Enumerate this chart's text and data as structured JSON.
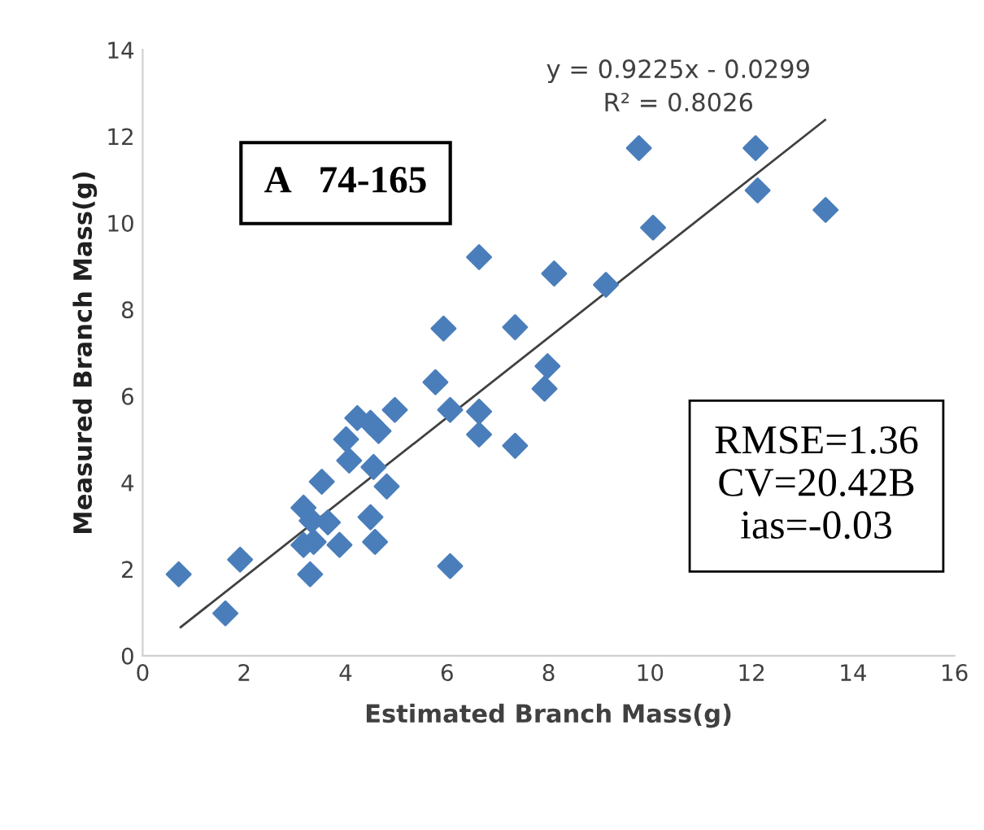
{
  "chart_data": {
    "type": "scatter",
    "xlabel": "Estimated Branch Mass(g)",
    "ylabel": "Measured Branch Mass(g)",
    "xlim": [
      0,
      16
    ],
    "xticks": [
      0,
      2,
      4,
      6,
      8,
      10,
      12,
      14,
      16
    ],
    "ylim": [
      0,
      14
    ],
    "yticks": [
      0,
      2,
      4,
      6,
      8,
      10,
      12,
      14
    ],
    "grid": false,
    "series": [
      {
        "marker": "diamond",
        "color": "#4a7ebb",
        "x": [
          0.71,
          1.63,
          1.92,
          3.17,
          3.33,
          3.17,
          3.37,
          3.3,
          3.65,
          3.88,
          3.53,
          4.07,
          4.01,
          4.23,
          4.49,
          4.65,
          4.97,
          4.49,
          4.58,
          4.55,
          4.81,
          5.77,
          6.06,
          6.63,
          6.63,
          7.34,
          6.06,
          6.63,
          5.93,
          7.34,
          8.11,
          9.13,
          10.06,
          9.78,
          12.08,
          12.12,
          13.46,
          7.98,
          7.92
        ],
        "values": [
          1.88,
          0.98,
          2.22,
          3.42,
          3.12,
          2.56,
          2.63,
          1.88,
          3.08,
          2.56,
          4.02,
          4.51,
          5.0,
          5.49,
          5.38,
          5.19,
          5.68,
          3.2,
          2.63,
          4.36,
          3.91,
          6.32,
          5.68,
          5.64,
          5.11,
          4.85,
          2.07,
          9.21,
          7.56,
          7.59,
          8.83,
          8.57,
          9.89,
          11.73,
          11.73,
          10.75,
          10.3,
          6.69,
          6.17
        ]
      },
      {
        "type": "line",
        "marker": "none",
        "line_style": "solid",
        "color": "#404040",
        "x": [
          0.75,
          13.45
        ],
        "values": [
          0.66,
          12.38
        ]
      }
    ],
    "annotations": [
      "y = 0.9225x - 0.0299",
      "R² = 0.8026",
      "A   74-165",
      "RMSE=1.36\nCV=20.42B\nias=-0.03"
    ]
  }
}
